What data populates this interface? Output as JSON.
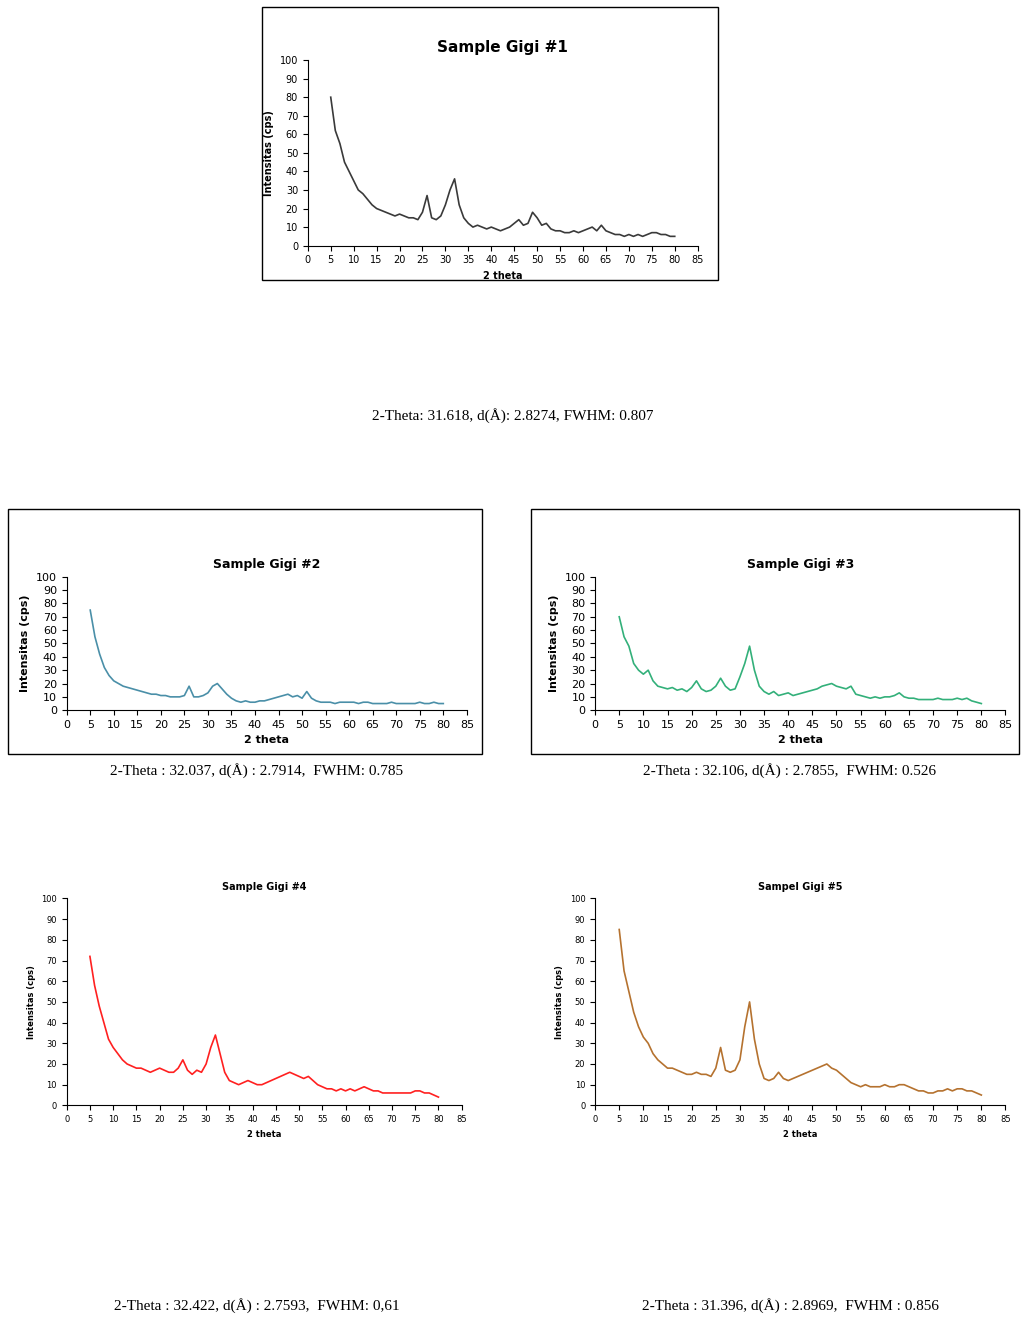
{
  "chart_data": [
    {
      "type": "line",
      "title": "Sample Gigi #1",
      "x_label": "2 theta",
      "y_label": "Intensitas (cps)",
      "color": "#3a3a3a",
      "x": [
        5,
        6,
        7,
        8,
        9,
        10,
        11,
        12,
        13,
        14,
        15,
        16,
        17,
        18,
        19,
        20,
        21,
        22,
        23,
        24,
        25,
        26,
        27,
        28,
        29,
        30,
        31,
        32,
        33,
        34,
        35,
        36,
        37,
        38,
        39,
        40,
        41,
        42,
        43,
        44,
        45,
        46,
        47,
        48,
        49,
        50,
        51,
        52,
        53,
        54,
        55,
        56,
        57,
        58,
        59,
        60,
        61,
        62,
        63,
        64,
        65,
        66,
        67,
        68,
        69,
        70,
        71,
        72,
        73,
        74,
        75,
        76,
        77,
        78,
        79,
        80
      ],
      "values": [
        80,
        62,
        55,
        45,
        40,
        35,
        30,
        28,
        25,
        22,
        20,
        19,
        18,
        17,
        16,
        17,
        16,
        15,
        15,
        14,
        18,
        27,
        15,
        14,
        16,
        22,
        30,
        36,
        22,
        15,
        12,
        10,
        11,
        10,
        9,
        10,
        9,
        8,
        9,
        10,
        12,
        14,
        11,
        12,
        18,
        15,
        11,
        12,
        9,
        8,
        8,
        7,
        7,
        8,
        7,
        8,
        9,
        10,
        8,
        11,
        8,
        7,
        6,
        6,
        5,
        6,
        5,
        6,
        5,
        6,
        7,
        7,
        6,
        6,
        5,
        5
      ],
      "xlim": [
        0,
        85
      ],
      "ylim": [
        0,
        100
      ],
      "xticks": [
        0,
        5,
        10,
        15,
        20,
        25,
        30,
        35,
        40,
        45,
        50,
        55,
        60,
        65,
        70,
        75,
        80,
        85
      ],
      "yticks": [
        0,
        10,
        20,
        30,
        40,
        50,
        60,
        70,
        80,
        90,
        100
      ],
      "annotation": "2-Theta: 31.618, d(Å): 2.8274, FWHM: 0.807"
    },
    {
      "type": "line",
      "title": "Sample Gigi #2",
      "x_label": "2 theta",
      "y_label": "Intensitas (cps)",
      "color": "#4a8fa8",
      "x": [
        5,
        6,
        7,
        8,
        9,
        10,
        11,
        12,
        13,
        14,
        15,
        16,
        17,
        18,
        19,
        20,
        21,
        22,
        23,
        24,
        25,
        26,
        27,
        28,
        29,
        30,
        31,
        32,
        33,
        34,
        35,
        36,
        37,
        38,
        39,
        40,
        41,
        42,
        43,
        44,
        45,
        46,
        47,
        48,
        49,
        50,
        51,
        52,
        53,
        54,
        55,
        56,
        57,
        58,
        59,
        60,
        61,
        62,
        63,
        64,
        65,
        66,
        67,
        68,
        69,
        70,
        71,
        72,
        73,
        74,
        75,
        76,
        77,
        78,
        79,
        80
      ],
      "values": [
        75,
        55,
        42,
        32,
        26,
        22,
        20,
        18,
        17,
        16,
        15,
        14,
        13,
        12,
        12,
        11,
        11,
        10,
        10,
        10,
        11,
        18,
        10,
        10,
        11,
        13,
        18,
        20,
        16,
        12,
        9,
        7,
        6,
        7,
        6,
        6,
        7,
        7,
        8,
        9,
        10,
        11,
        12,
        10,
        11,
        9,
        14,
        9,
        7,
        6,
        6,
        6,
        5,
        6,
        6,
        6,
        6,
        5,
        6,
        6,
        5,
        5,
        5,
        5,
        6,
        5,
        5,
        5,
        5,
        5,
        6,
        5,
        5,
        6,
        5,
        5
      ],
      "xlim": [
        0,
        85
      ],
      "ylim": [
        0,
        100
      ],
      "xticks": [
        0,
        5,
        10,
        15,
        20,
        25,
        30,
        35,
        40,
        45,
        50,
        55,
        60,
        65,
        70,
        75,
        80,
        85
      ],
      "yticks": [
        0,
        10,
        20,
        30,
        40,
        50,
        60,
        70,
        80,
        90,
        100
      ],
      "annotation": "2-Theta : 32.037, d(Å) : 2.7914,  FWHM: 0.785"
    },
    {
      "type": "line",
      "title": "Sample Gigi #3",
      "x_label": "2 theta",
      "y_label": "Intensitas (cps)",
      "color": "#33b07a",
      "x": [
        5,
        6,
        7,
        8,
        9,
        10,
        11,
        12,
        13,
        14,
        15,
        16,
        17,
        18,
        19,
        20,
        21,
        22,
        23,
        24,
        25,
        26,
        27,
        28,
        29,
        30,
        31,
        32,
        33,
        34,
        35,
        36,
        37,
        38,
        39,
        40,
        41,
        42,
        43,
        44,
        45,
        46,
        47,
        48,
        49,
        50,
        51,
        52,
        53,
        54,
        55,
        56,
        57,
        58,
        59,
        60,
        61,
        62,
        63,
        64,
        65,
        66,
        67,
        68,
        69,
        70,
        71,
        72,
        73,
        74,
        75,
        76,
        77,
        78,
        79,
        80
      ],
      "values": [
        70,
        55,
        48,
        35,
        30,
        27,
        30,
        22,
        18,
        17,
        16,
        17,
        15,
        16,
        14,
        17,
        22,
        16,
        14,
        15,
        18,
        24,
        18,
        15,
        16,
        25,
        35,
        48,
        30,
        18,
        14,
        12,
        14,
        11,
        12,
        13,
        11,
        12,
        13,
        14,
        15,
        16,
        18,
        19,
        20,
        18,
        17,
        16,
        18,
        12,
        11,
        10,
        9,
        10,
        9,
        10,
        10,
        11,
        13,
        10,
        9,
        9,
        8,
        8,
        8,
        8,
        9,
        8,
        8,
        8,
        9,
        8,
        9,
        7,
        6,
        5
      ],
      "xlim": [
        0,
        85
      ],
      "ylim": [
        0,
        100
      ],
      "xticks": [
        0,
        5,
        10,
        15,
        20,
        25,
        30,
        35,
        40,
        45,
        50,
        55,
        60,
        65,
        70,
        75,
        80,
        85
      ],
      "yticks": [
        0,
        10,
        20,
        30,
        40,
        50,
        60,
        70,
        80,
        90,
        100
      ],
      "annotation": "2-Theta : 32.106, d(Å) : 2.7855,  FWHM: 0.526"
    },
    {
      "type": "line",
      "title": "Sample Gigi #4",
      "x_label": "2 theta",
      "y_label": "Intensitas (cps)",
      "color": "#ff2020",
      "x": [
        5,
        6,
        7,
        8,
        9,
        10,
        11,
        12,
        13,
        14,
        15,
        16,
        17,
        18,
        19,
        20,
        21,
        22,
        23,
        24,
        25,
        26,
        27,
        28,
        29,
        30,
        31,
        32,
        33,
        34,
        35,
        36,
        37,
        38,
        39,
        40,
        41,
        42,
        43,
        44,
        45,
        46,
        47,
        48,
        49,
        50,
        51,
        52,
        53,
        54,
        55,
        56,
        57,
        58,
        59,
        60,
        61,
        62,
        63,
        64,
        65,
        66,
        67,
        68,
        69,
        70,
        71,
        72,
        73,
        74,
        75,
        76,
        77,
        78,
        79,
        80
      ],
      "values": [
        72,
        58,
        48,
        40,
        32,
        28,
        25,
        22,
        20,
        19,
        18,
        18,
        17,
        16,
        17,
        18,
        17,
        16,
        16,
        18,
        22,
        17,
        15,
        17,
        16,
        20,
        28,
        34,
        25,
        16,
        12,
        11,
        10,
        11,
        12,
        11,
        10,
        10,
        11,
        12,
        13,
        14,
        15,
        16,
        15,
        14,
        13,
        14,
        12,
        10,
        9,
        8,
        8,
        7,
        8,
        7,
        8,
        7,
        8,
        9,
        8,
        7,
        7,
        6,
        6,
        6,
        6,
        6,
        6,
        6,
        7,
        7,
        6,
        6,
        5,
        4
      ],
      "xlim": [
        0,
        85
      ],
      "ylim": [
        0,
        100
      ],
      "xticks": [
        0,
        5,
        10,
        15,
        20,
        25,
        30,
        35,
        40,
        45,
        50,
        55,
        60,
        65,
        70,
        75,
        80,
        85
      ],
      "yticks": [
        0,
        10,
        20,
        30,
        40,
        50,
        60,
        70,
        80,
        90,
        100
      ],
      "annotation": "2-Theta : 32.422, d(Å) : 2.7593,  FWHM: 0,61"
    },
    {
      "type": "line",
      "title": "Sampel Gigi #5",
      "x_label": "2 theta",
      "y_label": "Intensitas (cps)",
      "color": "#b5722f",
      "x": [
        5,
        6,
        7,
        8,
        9,
        10,
        11,
        12,
        13,
        14,
        15,
        16,
        17,
        18,
        19,
        20,
        21,
        22,
        23,
        24,
        25,
        26,
        27,
        28,
        29,
        30,
        31,
        32,
        33,
        34,
        35,
        36,
        37,
        38,
        39,
        40,
        41,
        42,
        43,
        44,
        45,
        46,
        47,
        48,
        49,
        50,
        51,
        52,
        53,
        54,
        55,
        56,
        57,
        58,
        59,
        60,
        61,
        62,
        63,
        64,
        65,
        66,
        67,
        68,
        69,
        70,
        71,
        72,
        73,
        74,
        75,
        76,
        77,
        78,
        79,
        80
      ],
      "values": [
        85,
        65,
        55,
        45,
        38,
        33,
        30,
        25,
        22,
        20,
        18,
        18,
        17,
        16,
        15,
        15,
        16,
        15,
        15,
        14,
        18,
        28,
        17,
        16,
        17,
        22,
        38,
        50,
        32,
        20,
        13,
        12,
        13,
        16,
        13,
        12,
        13,
        14,
        15,
        16,
        17,
        18,
        19,
        20,
        18,
        17,
        15,
        13,
        11,
        10,
        9,
        10,
        9,
        9,
        9,
        10,
        9,
        9,
        10,
        10,
        9,
        8,
        7,
        7,
        6,
        6,
        7,
        7,
        8,
        7,
        8,
        8,
        7,
        7,
        6,
        5
      ],
      "xlim": [
        0,
        85
      ],
      "ylim": [
        0,
        100
      ],
      "xticks": [
        0,
        5,
        10,
        15,
        20,
        25,
        30,
        35,
        40,
        45,
        50,
        55,
        60,
        65,
        70,
        75,
        80,
        85
      ],
      "yticks": [
        0,
        10,
        20,
        30,
        40,
        50,
        60,
        70,
        80,
        90,
        100
      ],
      "annotation": "2-Theta : 31.396, d(Å) : 2.8969,  FWHM : 0.856"
    }
  ]
}
